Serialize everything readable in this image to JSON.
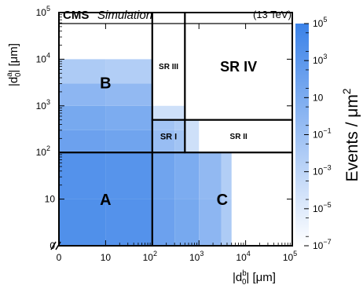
{
  "chart_data": {
    "type": "heatmap",
    "experiment": "CMS",
    "label": "Simulation",
    "energy": "(13 TeV)",
    "xlabel": {
      "pre": "|d",
      "sub": "0",
      "sup": "b",
      "post": "| [μm]"
    },
    "ylabel": {
      "pre": "|d",
      "sub": "0",
      "sup": "a",
      "post": "| [μm]"
    },
    "zlabel": {
      "pre": "Events / μm",
      "sup": "2"
    },
    "x_axis": {
      "range": [
        0,
        100000
      ],
      "ticks": [
        {
          "v": 0,
          "t": "0"
        },
        {
          "v": 10,
          "t": "10"
        },
        {
          "v": 100,
          "t": "10",
          "e": "2"
        },
        {
          "v": 1000,
          "t": "10",
          "e": "3"
        },
        {
          "v": 10000,
          "t": "10",
          "e": "4"
        },
        {
          "v": 100000,
          "t": "10",
          "e": "5"
        }
      ]
    },
    "y_axis": {
      "range": [
        0,
        100000
      ],
      "ticks": [
        {
          "v": 0,
          "t": "0"
        },
        {
          "v": 10,
          "t": "10"
        },
        {
          "v": 100,
          "t": "10",
          "e": "2"
        },
        {
          "v": 1000,
          "t": "10",
          "e": "3"
        },
        {
          "v": 10000,
          "t": "10",
          "e": "4"
        },
        {
          "v": 100000,
          "t": "10",
          "e": "5"
        }
      ]
    },
    "z_axis": {
      "log": true,
      "range": [
        1e-07,
        100000
      ],
      "ticks": [
        {
          "v": 100000.0,
          "t": "10",
          "e": "5"
        },
        {
          "v": 1000.0,
          "t": "10",
          "e": "3"
        },
        {
          "v": 10,
          "t": "10"
        },
        {
          "v": 0.1,
          "t": "10",
          "e": "−1"
        },
        {
          "v": 0.001,
          "t": "10",
          "e": "−3"
        },
        {
          "v": 1e-05,
          "t": "10",
          "e": "−5"
        },
        {
          "v": 1e-07,
          "t": "10",
          "e": "−7"
        }
      ]
    },
    "cells": [
      {
        "x": [
          0,
          10
        ],
        "y": [
          0,
          10
        ],
        "z": 5000
      },
      {
        "x": [
          10,
          100
        ],
        "y": [
          0,
          10
        ],
        "z": 3000
      },
      {
        "x": [
          0,
          10
        ],
        "y": [
          10,
          100
        ],
        "z": 3000
      },
      {
        "x": [
          10,
          100
        ],
        "y": [
          10,
          100
        ],
        "z": 2000
      },
      {
        "x": [
          0,
          10
        ],
        "y": [
          100,
          300
        ],
        "z": 100
      },
      {
        "x": [
          10,
          100
        ],
        "y": [
          100,
          300
        ],
        "z": 60
      },
      {
        "x": [
          0,
          10
        ],
        "y": [
          300,
          1000
        ],
        "z": 20
      },
      {
        "x": [
          10,
          100
        ],
        "y": [
          300,
          1000
        ],
        "z": 10
      },
      {
        "x": [
          0,
          10
        ],
        "y": [
          1000,
          3000
        ],
        "z": 1
      },
      {
        "x": [
          10,
          100
        ],
        "y": [
          1000,
          3000
        ],
        "z": 0.5
      },
      {
        "x": [
          0,
          10
        ],
        "y": [
          3000,
          10000
        ],
        "z": 0.01
      },
      {
        "x": [
          10,
          100
        ],
        "y": [
          3000,
          10000
        ],
        "z": 0.005
      },
      {
        "x": [
          100,
          300
        ],
        "y": [
          0,
          10
        ],
        "z": 100
      },
      {
        "x": [
          300,
          1000
        ],
        "y": [
          0,
          10
        ],
        "z": 20
      },
      {
        "x": [
          1000,
          3000
        ],
        "y": [
          0,
          10
        ],
        "z": 1
      },
      {
        "x": [
          3000,
          5000
        ],
        "y": [
          0,
          10
        ],
        "z": 0.01
      },
      {
        "x": [
          100,
          300
        ],
        "y": [
          10,
          100
        ],
        "z": 60
      },
      {
        "x": [
          300,
          1000
        ],
        "y": [
          10,
          100
        ],
        "z": 10
      },
      {
        "x": [
          1000,
          3000
        ],
        "y": [
          10,
          100
        ],
        "z": 0.5
      },
      {
        "x": [
          3000,
          5000
        ],
        "y": [
          10,
          100
        ],
        "z": 0.005
      },
      {
        "x": [
          100,
          300
        ],
        "y": [
          100,
          300
        ],
        "z": 0.2
      },
      {
        "x": [
          300,
          500
        ],
        "y": [
          100,
          300
        ],
        "z": 0.05
      },
      {
        "x": [
          100,
          300
        ],
        "y": [
          300,
          500
        ],
        "z": 0.05
      },
      {
        "x": [
          300,
          500
        ],
        "y": [
          300,
          500
        ],
        "z": 0.01
      },
      {
        "x": [
          500,
          1000
        ],
        "y": [
          100,
          500
        ],
        "z": 0.0001
      },
      {
        "x": [
          100,
          500
        ],
        "y": [
          500,
          1000
        ],
        "z": 0.0001
      }
    ],
    "regions": [
      {
        "label": "A",
        "x": [
          0,
          100
        ],
        "y": [
          0,
          100
        ]
      },
      {
        "label": "B",
        "x": [
          0,
          100
        ],
        "y": [
          100,
          100000
        ]
      },
      {
        "label": "C",
        "x": [
          100,
          100000
        ],
        "y": [
          0,
          100
        ]
      },
      {
        "label": "SR I",
        "x": [
          100,
          500
        ],
        "y": [
          100,
          500
        ]
      },
      {
        "label": "SR II",
        "x": [
          500,
          100000
        ],
        "y": [
          100,
          500
        ]
      },
      {
        "label": "SR III",
        "x": [
          100,
          500
        ],
        "y": [
          500,
          100000
        ]
      },
      {
        "label": "SR IV",
        "x": [
          500,
          100000
        ],
        "y": [
          500,
          100000
        ]
      }
    ],
    "colors": {
      "low": "#ffffff",
      "high": "#3b82e8",
      "frame": "#000000"
    }
  }
}
